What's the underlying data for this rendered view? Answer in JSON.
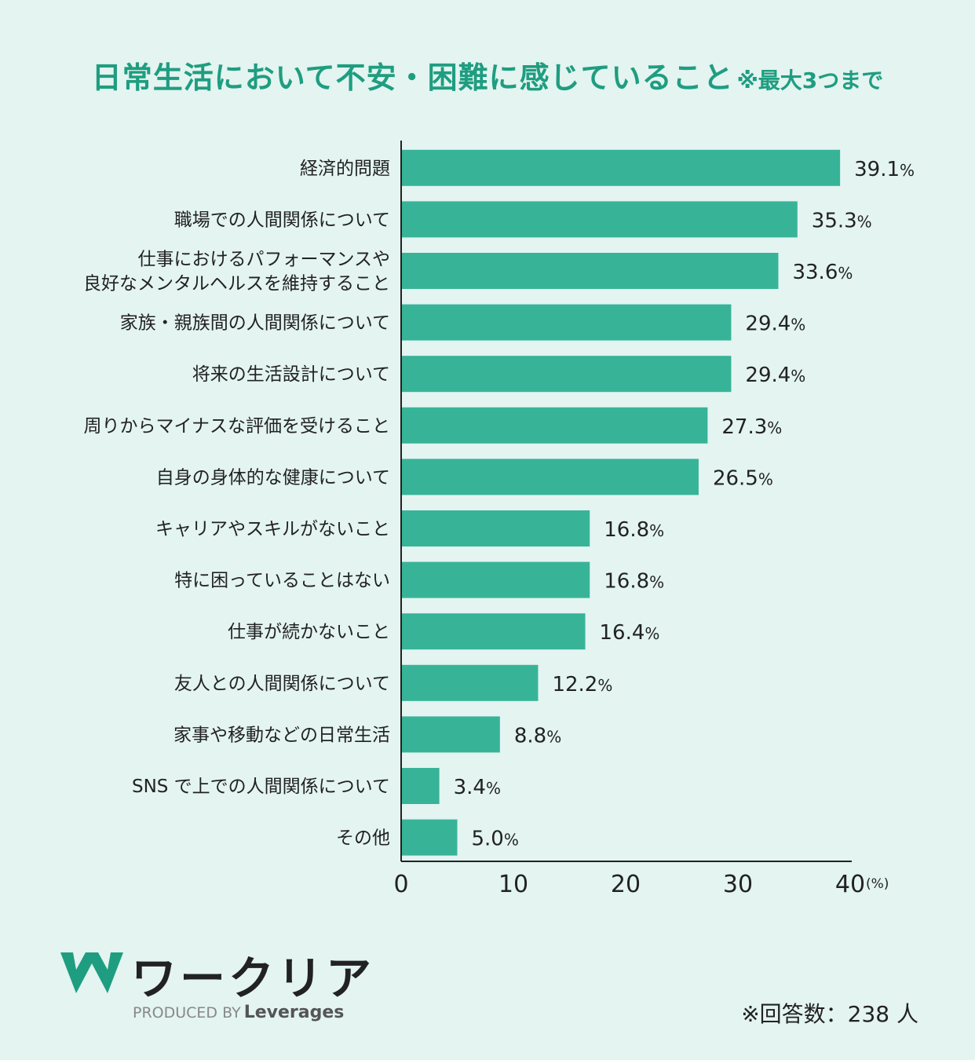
{
  "title": {
    "main": "日常生活において不安・困難に感じていること",
    "note": "※最大3つまで"
  },
  "colors": {
    "bar": "#37b498",
    "title": "#1f9d80",
    "axis": "#222222",
    "background": "#e3f4f1"
  },
  "chart_data": {
    "type": "bar",
    "orientation": "horizontal",
    "categories": [
      "経済的問題",
      "職場での人間関係について",
      "仕事におけるパフォーマンスや\n良好なメンタルヘルスを維持すること",
      "家族・親族間の人間関係について",
      "将来の生活設計について",
      "周りからマイナスな評価を受けること",
      "自身の身体的な健康について",
      "キャリアやスキルがないこと",
      "特に困っていることはない",
      "仕事が続かないこと",
      "友人との人間関係について",
      "家事や移動などの日常生活",
      "SNS で上での人間関係について",
      "その他"
    ],
    "values": [
      39.1,
      35.3,
      33.6,
      29.4,
      29.4,
      27.3,
      26.5,
      16.8,
      16.8,
      16.4,
      12.2,
      8.8,
      3.4,
      5.0
    ],
    "value_labels": [
      "39.1",
      "35.3",
      "33.6",
      "29.4",
      "29.4",
      "27.3",
      "26.5",
      "16.8",
      "16.8",
      "16.4",
      "12.2",
      "8.8",
      "3.4",
      "5.0"
    ],
    "value_unit": "%",
    "xticks": [
      "0",
      "10",
      "20",
      "30",
      "40"
    ],
    "xunit": "(%)",
    "xlim": [
      0,
      40
    ],
    "grid": false
  },
  "logo": {
    "wordmark": "ワークリア",
    "produced_by": "PRODUCED BY",
    "brand": "Leverages"
  },
  "footer": {
    "respondents": "※回答数：238 人"
  }
}
